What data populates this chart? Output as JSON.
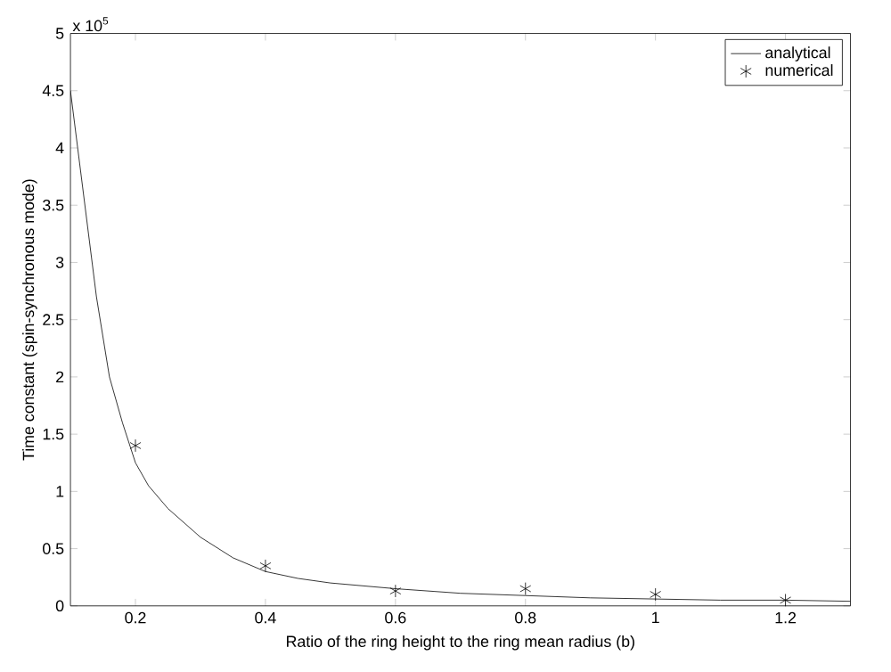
{
  "chart_data": {
    "type": "line",
    "xlabel": "Ratio of the ring height to the ring mean radius (b)",
    "ylabel": "Time constant (spin-synchronous mode)",
    "annotations": [
      "x 10$^{5}$"
    ],
    "xlim": [
      0.1,
      1.3
    ],
    "xticks": [
      0.2,
      0.4,
      0.6,
      0.8,
      1,
      1.2
    ],
    "ylim": [
      0,
      5
    ],
    "yticks": [
      0,
      0.5,
      1,
      1.5,
      2,
      2.5,
      3,
      3.5,
      4,
      4.5,
      5
    ],
    "legend": "top right",
    "grid": false,
    "series": [
      {
        "name": "analytical",
        "type": "line",
        "color": "#000000",
        "marker": "none",
        "line_style": "solid",
        "x": [
          0.1,
          0.12,
          0.14,
          0.16,
          0.18,
          0.2,
          0.22,
          0.25,
          0.3,
          0.35,
          0.4,
          0.45,
          0.5,
          0.6,
          0.7,
          0.8,
          0.9,
          1.0,
          1.1,
          1.2,
          1.3
        ],
        "values": [
          4.5,
          3.6,
          2.7,
          2.0,
          1.6,
          1.25,
          1.05,
          0.85,
          0.6,
          0.42,
          0.3,
          0.24,
          0.2,
          0.15,
          0.11,
          0.09,
          0.07,
          0.06,
          0.05,
          0.05,
          0.04
        ]
      },
      {
        "name": "numerical",
        "type": "scatter",
        "color": "#000000",
        "marker": "cross",
        "x": [
          0.2,
          0.4,
          0.6,
          0.8,
          1.0,
          1.2
        ],
        "values": [
          1.4,
          0.35,
          0.13,
          0.15,
          0.1,
          0.05
        ]
      }
    ]
  }
}
